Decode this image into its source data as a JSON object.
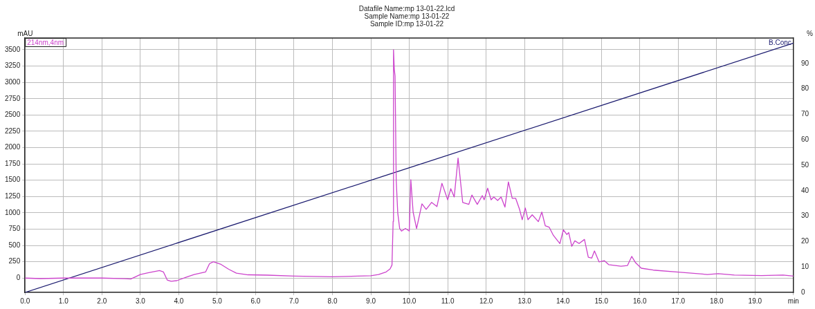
{
  "chart_data": {
    "type": "line",
    "title": "Datafile Name:mp 13-01-22.lcd\nSample Name:mp 13-01-22\nSample ID:mp 13-01-22",
    "ylabel": "mAU",
    "y2label": "%",
    "xlim": [
      0,
      20
    ],
    "xticks": [
      {
        "value": 0,
        "label": "0.0"
      },
      {
        "value": 1,
        "label": "1.0"
      },
      {
        "value": 2,
        "label": "2.0"
      },
      {
        "value": 3,
        "label": "3.0"
      },
      {
        "value": 4,
        "label": "4.0"
      },
      {
        "value": 5,
        "label": "5.0"
      },
      {
        "value": 6,
        "label": "6.0"
      },
      {
        "value": 7,
        "label": "7.0"
      },
      {
        "value": 8,
        "label": "8.0"
      },
      {
        "value": 9,
        "label": "9.0"
      },
      {
        "value": 10,
        "label": "10.0"
      },
      {
        "value": 11,
        "label": "11.0"
      },
      {
        "value": 12,
        "label": "12.0"
      },
      {
        "value": 13,
        "label": "13.0"
      },
      {
        "value": 14,
        "label": "14.0"
      },
      {
        "value": 15,
        "label": "15.0"
      },
      {
        "value": 16,
        "label": "16.0"
      },
      {
        "value": 17,
        "label": "17.0"
      },
      {
        "value": 18,
        "label": "18.0"
      },
      {
        "value": 19,
        "label": "19.0"
      },
      {
        "value": 20,
        "label": "min"
      }
    ],
    "ylim": [
      -220,
      3680
    ],
    "yticks": [
      0,
      250,
      500,
      750,
      1000,
      1250,
      1500,
      1750,
      2000,
      2250,
      2500,
      2750,
      3000,
      3250,
      3500
    ],
    "y2lim": [
      0,
      100
    ],
    "y2ticks": [
      0,
      10,
      20,
      30,
      40,
      50,
      60,
      70,
      80,
      90
    ],
    "grid": true,
    "marker": "none",
    "series": [
      {
        "name": "214nm,4nm",
        "color": "#cc44cc",
        "axis": "y",
        "x": [
          0,
          0.4,
          1.0,
          2.0,
          2.6,
          2.75,
          3.0,
          3.2,
          3.5,
          3.6,
          3.7,
          3.8,
          3.95,
          4.2,
          4.4,
          4.7,
          4.8,
          4.9,
          5.1,
          5.3,
          5.5,
          5.8,
          6.3,
          7.0,
          8.0,
          9.0,
          9.2,
          9.4,
          9.5,
          9.55,
          9.58,
          9.59,
          9.61,
          9.63,
          9.66,
          9.7,
          9.75,
          9.8,
          9.9,
          10.0,
          10.04,
          10.1,
          10.19,
          10.33,
          10.44,
          10.58,
          10.72,
          10.85,
          11.0,
          11.08,
          11.17,
          11.27,
          11.39,
          11.55,
          11.63,
          11.77,
          11.9,
          11.95,
          12.04,
          12.13,
          12.2,
          12.3,
          12.39,
          12.49,
          12.58,
          12.68,
          12.77,
          12.87,
          12.94,
          13.02,
          13.09,
          13.2,
          13.36,
          13.45,
          13.54,
          13.64,
          13.75,
          13.92,
          14.01,
          14.1,
          14.15,
          14.23,
          14.31,
          14.42,
          14.56,
          14.66,
          14.75,
          14.82,
          14.94,
          15.08,
          15.19,
          15.37,
          15.51,
          15.68,
          15.79,
          15.89,
          16.04,
          16.35,
          17.06,
          17.76,
          18.04,
          18.46,
          19.17,
          19.73,
          20.0
        ],
        "values": [
          0,
          -8,
          0,
          0,
          -10,
          -15,
          55,
          80,
          115,
          95,
          -30,
          -50,
          -40,
          15,
          55,
          95,
          220,
          250,
          210,
          135,
          75,
          50,
          45,
          30,
          20,
          35,
          55,
          95,
          140,
          200,
          870,
          3500,
          3200,
          3100,
          1500,
          1000,
          760,
          720,
          760,
          720,
          1508,
          1012,
          760,
          1138,
          1054,
          1160,
          1096,
          1453,
          1200,
          1370,
          1243,
          1840,
          1160,
          1130,
          1273,
          1130,
          1264,
          1200,
          1378,
          1200,
          1243,
          1190,
          1243,
          1088,
          1474,
          1222,
          1222,
          1054,
          895,
          1075,
          895,
          970,
          865,
          1012,
          802,
          781,
          655,
          529,
          739,
          668,
          697,
          487,
          571,
          529,
          592,
          319,
          307,
          416,
          248,
          265,
          206,
          193,
          181,
          193,
          332,
          235,
          151,
          122,
          88,
          55,
          67,
          46,
          38,
          46,
          30
        ]
      },
      {
        "name": "B.Conc",
        "color": "#1a1a6e",
        "axis": "y2",
        "x": [
          0,
          20
        ],
        "values": [
          0,
          98
        ]
      }
    ]
  }
}
